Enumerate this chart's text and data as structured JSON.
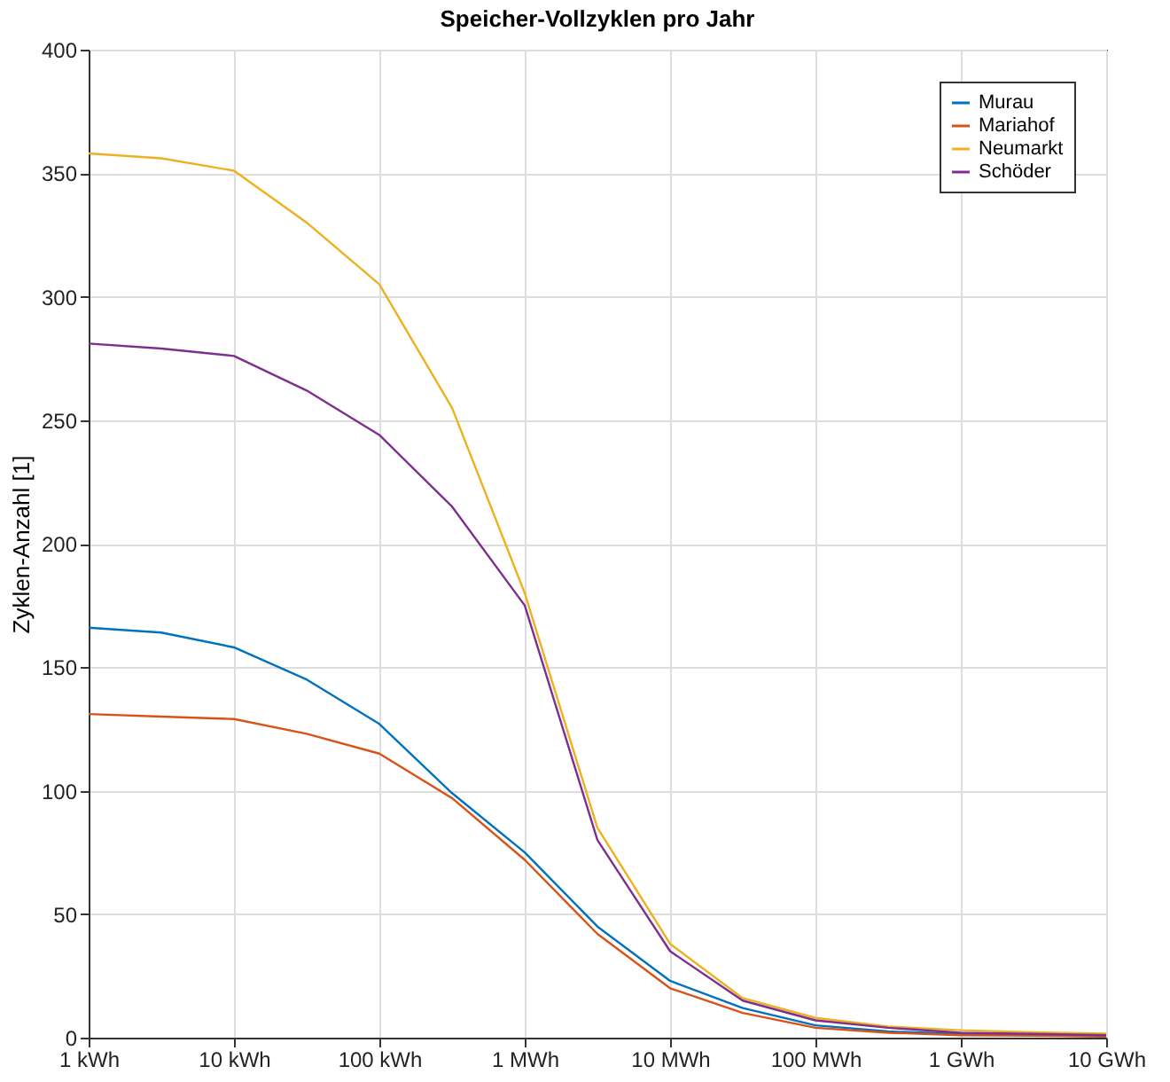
{
  "chart_data": {
    "type": "line",
    "title": "Speicher-Vollzyklen pro Jahr",
    "ylabel": "Zyklen-Anzahl [1]",
    "categories": [
      "1 kWh",
      null,
      "10 kWh",
      null,
      "100 kWh",
      null,
      "1 MWh",
      null,
      "10 MWh",
      null,
      "100 MWh",
      null,
      "1 GWh",
      null,
      "10 GWh"
    ],
    "series": [
      {
        "name": "Murau",
        "color": "#0072bd",
        "values": [
          166,
          164,
          158,
          145,
          127,
          99,
          75,
          45,
          23,
          12,
          5,
          2.5,
          1.5,
          1,
          0.5
        ]
      },
      {
        "name": "Mariahof",
        "color": "#d95319",
        "values": [
          131,
          130,
          129,
          123,
          115,
          97,
          72,
          42,
          20,
          10,
          4,
          2,
          1,
          0.8,
          0.5
        ]
      },
      {
        "name": "Neumarkt",
        "color": "#edb120",
        "values": [
          358,
          356,
          351,
          330,
          305,
          255,
          180,
          85,
          38,
          16,
          8,
          4.5,
          3,
          2.2,
          1.6
        ]
      },
      {
        "name": "Schöder",
        "color": "#7e2f8e",
        "values": [
          281,
          279,
          276,
          262,
          244,
          215,
          175,
          80,
          35,
          15,
          7,
          4,
          2,
          1.5,
          1
        ]
      }
    ],
    "ylim": [
      0,
      400
    ],
    "yticks": [
      0,
      50,
      100,
      150,
      200,
      250,
      300,
      350,
      400
    ],
    "grid": true,
    "legend": "top right"
  }
}
